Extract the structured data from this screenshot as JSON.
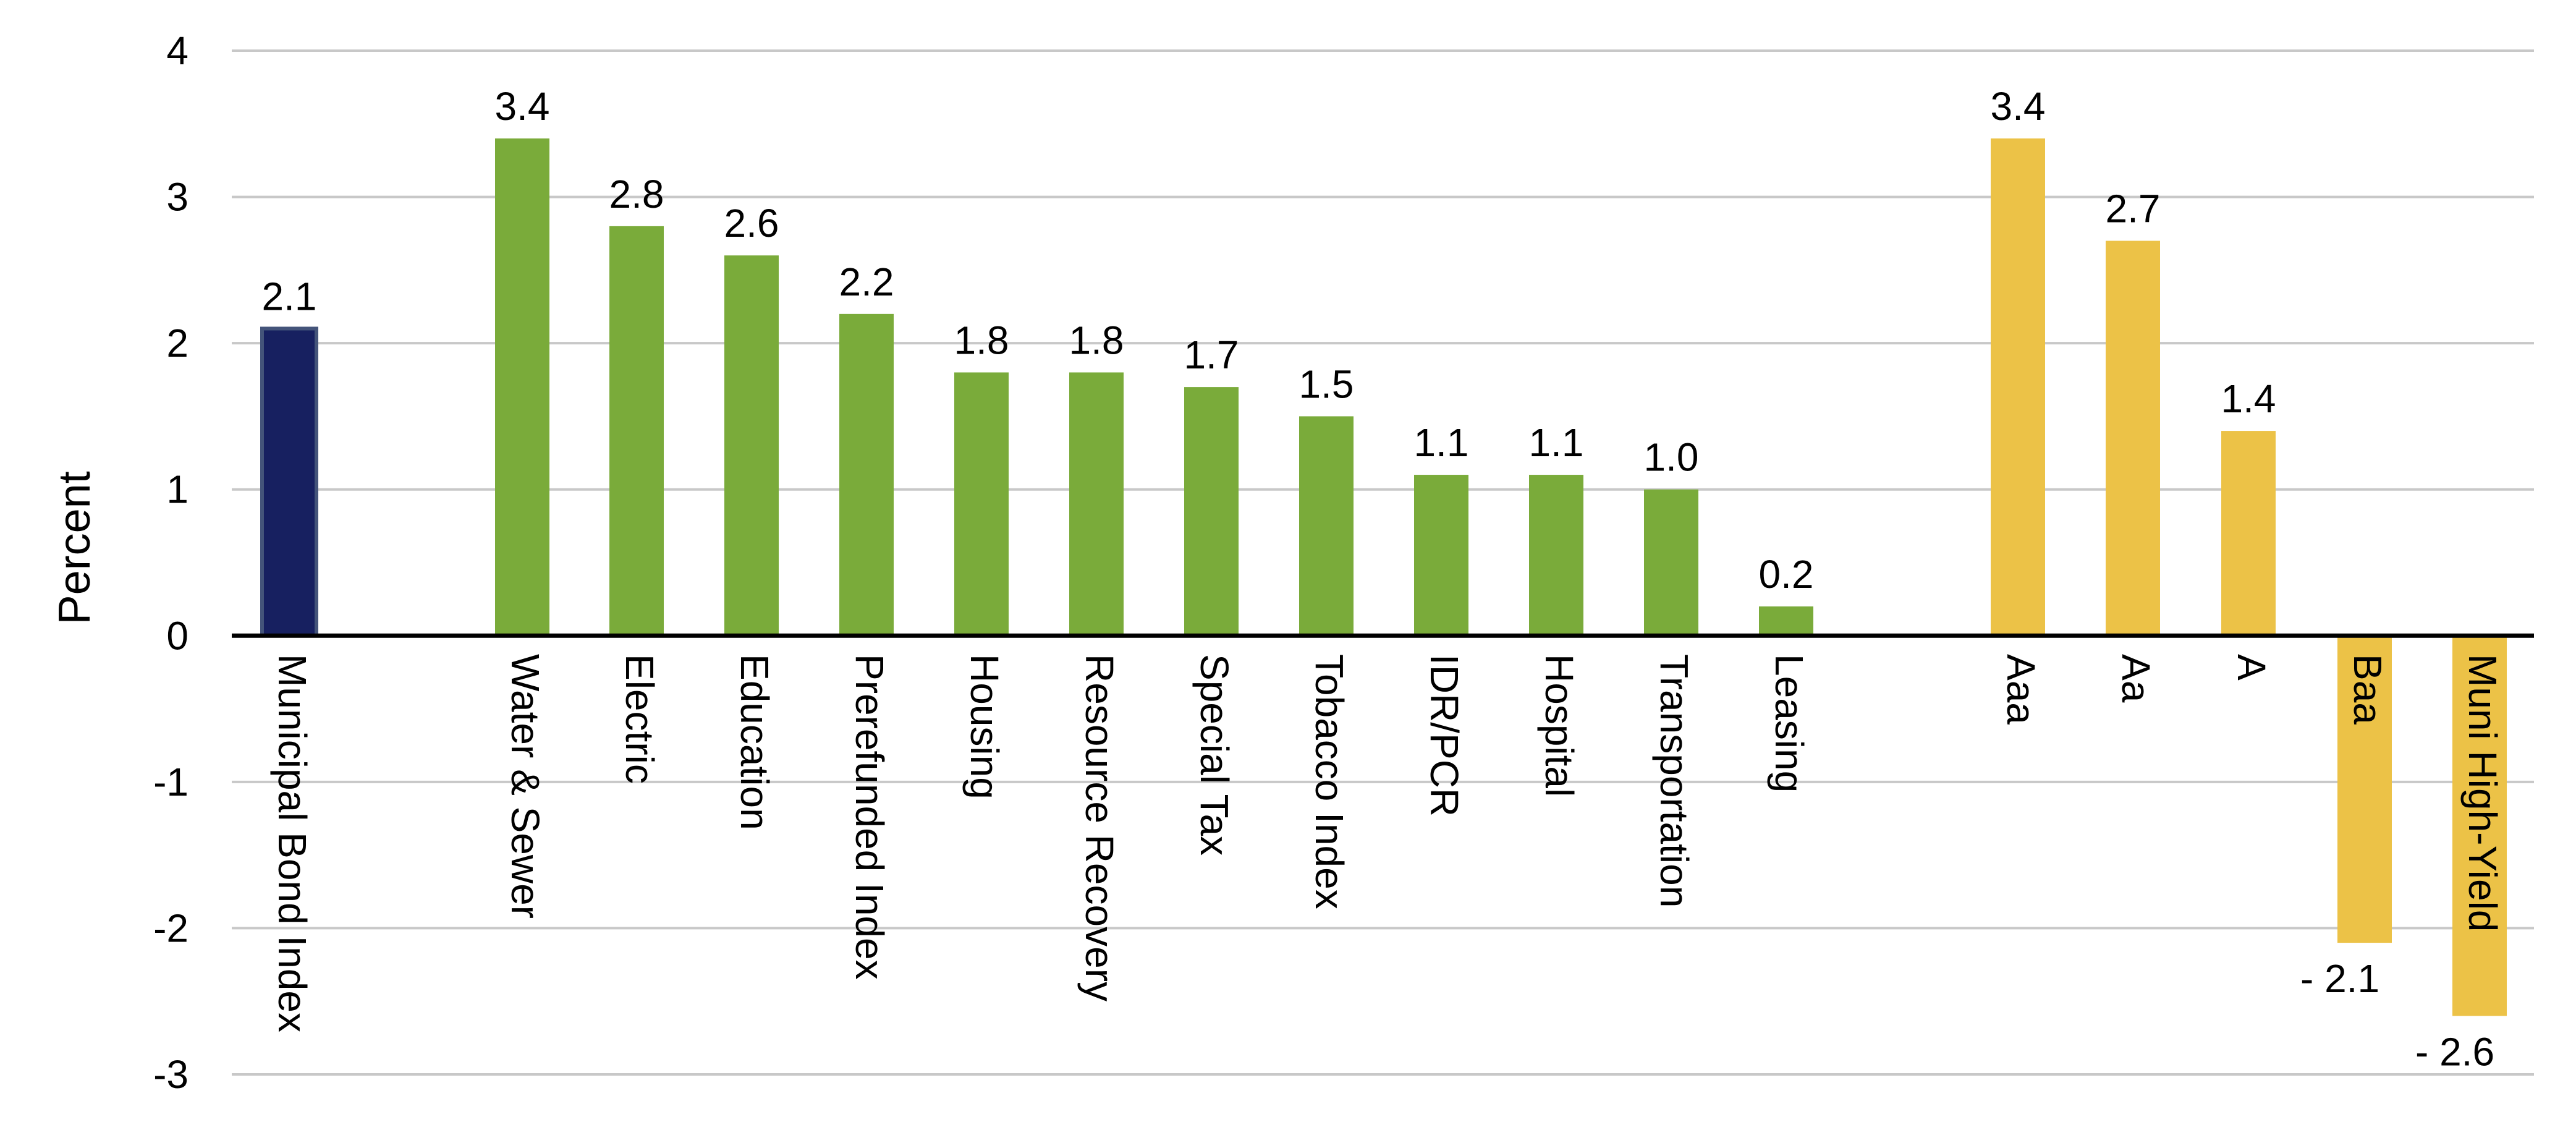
{
  "chart_data": {
    "type": "bar",
    "title": "",
    "xlabel": "",
    "ylabel": "Percent",
    "ylim": [
      -3,
      4
    ],
    "yticks": [
      -3,
      -2,
      -1,
      0,
      1,
      2,
      3,
      4
    ],
    "ytick_labels": [
      "-3",
      "-2",
      "-1",
      "0",
      "1",
      "2",
      "3",
      "4"
    ],
    "grid": true,
    "legend": "none",
    "bars": [
      {
        "category": "Municipal Bond Index",
        "value": 2.1,
        "label": "2.1",
        "group": "index",
        "color": "#172060"
      },
      {
        "category": "Water & Sewer",
        "value": 3.4,
        "label": "3.4",
        "group": "sector",
        "color": "#7aab3a"
      },
      {
        "category": "Electric",
        "value": 2.8,
        "label": "2.8",
        "group": "sector",
        "color": "#7aab3a"
      },
      {
        "category": "Education",
        "value": 2.6,
        "label": "2.6",
        "group": "sector",
        "color": "#7aab3a"
      },
      {
        "category": "Prerefunded Index",
        "value": 2.2,
        "label": "2.2",
        "group": "sector",
        "color": "#7aab3a"
      },
      {
        "category": "Housing",
        "value": 1.8,
        "label": "1.8",
        "group": "sector",
        "color": "#7aab3a"
      },
      {
        "category": "Resource Recovery",
        "value": 1.8,
        "label": "1.8",
        "group": "sector",
        "color": "#7aab3a"
      },
      {
        "category": "Special Tax",
        "value": 1.7,
        "label": "1.7",
        "group": "sector",
        "color": "#7aab3a"
      },
      {
        "category": "Tobacco Index",
        "value": 1.5,
        "label": "1.5",
        "group": "sector",
        "color": "#7aab3a"
      },
      {
        "category": "IDR/PCR",
        "value": 1.1,
        "label": "1.1",
        "group": "sector",
        "color": "#7aab3a"
      },
      {
        "category": "Hospital",
        "value": 1.1,
        "label": "1.1",
        "group": "sector",
        "color": "#7aab3a"
      },
      {
        "category": "Transportation",
        "value": 1.0,
        "label": "1.0",
        "group": "sector",
        "color": "#7aab3a"
      },
      {
        "category": "Leasing",
        "value": 0.2,
        "label": "0.2",
        "group": "sector",
        "color": "#7aab3a"
      },
      {
        "category": "Aaa",
        "value": 3.4,
        "label": "3.4",
        "group": "rating",
        "color": "#ecc247"
      },
      {
        "category": "Aa",
        "value": 2.7,
        "label": "2.7",
        "group": "rating",
        "color": "#ecc247"
      },
      {
        "category": "A",
        "value": 1.4,
        "label": "1.4",
        "group": "rating",
        "color": "#ecc247"
      },
      {
        "category": "Baa",
        "value": -2.1,
        "label": "- 2.1",
        "group": "rating",
        "color": "#ecc247"
      },
      {
        "category": "Muni High-Yield",
        "value": -2.6,
        "label": "- 2.6",
        "group": "rating",
        "color": "#ecc247"
      }
    ]
  }
}
